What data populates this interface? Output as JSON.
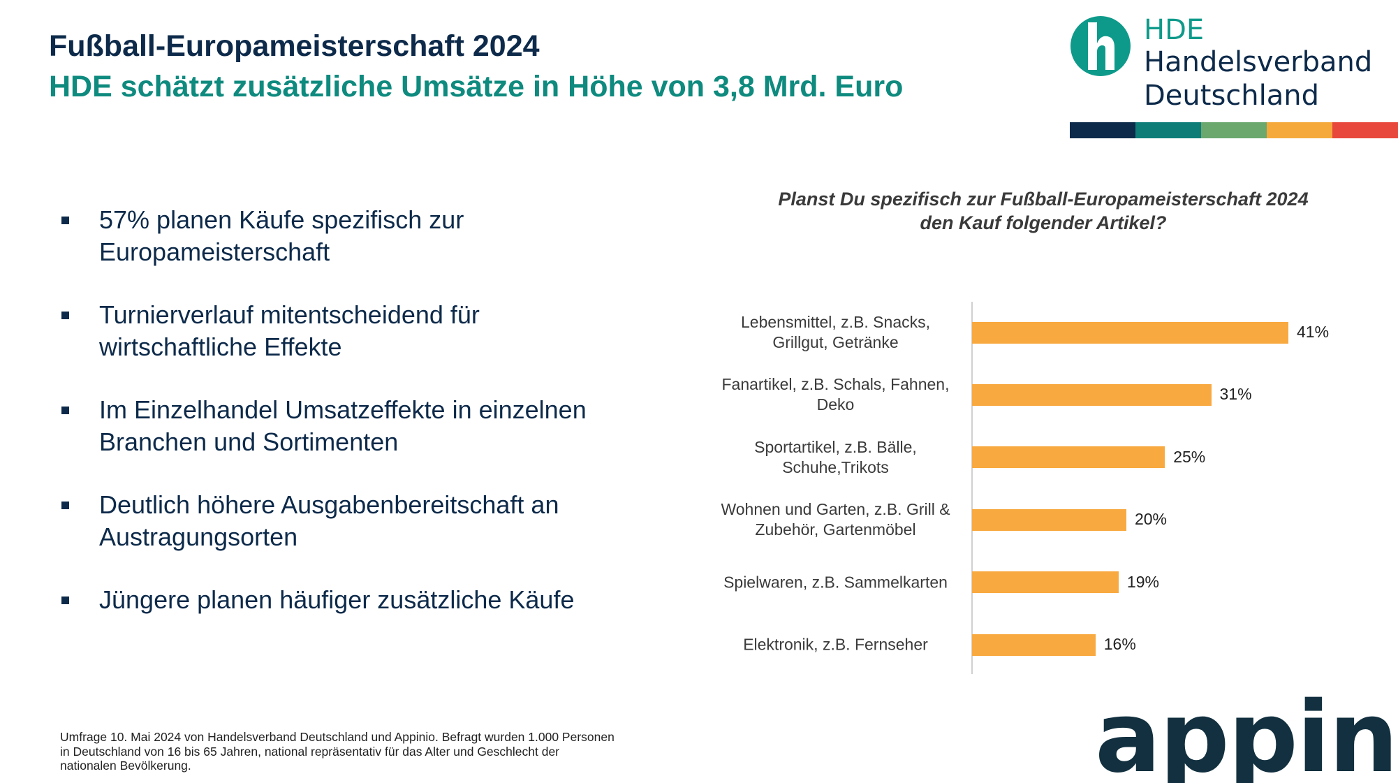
{
  "header": {
    "title": "Fußball-Europameisterschaft 2024",
    "subtitle": "HDE schätzt zusätzliche Umsätze in Höhe von 3,8 Mrd. Euro"
  },
  "logo": {
    "short": "HDE",
    "line1": "Handelsverband",
    "line2": "Deutschland"
  },
  "bullets": [
    "57% planen Käufe spezifisch zur Europameisterschaft",
    "Turnierverlauf mitentscheidend für wirtschaftliche Effekte",
    "Im Einzelhandel Umsatzeffekte in einzelnen Branchen und Sortimenten",
    "Deutlich höhere Ausgabenbereitschaft an Austragungsorten",
    "Jüngere planen häufiger zusätzliche Käufe"
  ],
  "chart_data": {
    "type": "bar",
    "orientation": "horizontal",
    "title": "Planst Du spezifisch zur Fußball-Europameisterschaft 2024 den Kauf folgender Artikel?",
    "categories": [
      "Lebensmittel, z.B. Snacks, Grillgut, Getränke",
      "Fanartikel, z.B. Schals, Fahnen, Deko",
      "Sportartikel, z.B. Bälle, Schuhe,Trikots",
      "Wohnen und Garten, z.B. Grill & Zubehör, Gartenmöbel",
      "Spielwaren, z.B. Sammelkarten",
      "Elektronik, z.B. Fernseher"
    ],
    "values": [
      41,
      31,
      25,
      20,
      19,
      16
    ],
    "value_labels": [
      "41%",
      "31%",
      "25%",
      "20%",
      "19%",
      "16%"
    ],
    "color": "#f8a93f"
  },
  "footnote": "Umfrage 10. Mai 2024 von Handelsverband Deutschland und Appinio. Befragt wurden 1.000 Personen in Deutschland von 16 bis 65 Jahren, national repräsentativ für das Alter und Geschlecht der nationalen Bevölkerung.",
  "brand": "appinio"
}
